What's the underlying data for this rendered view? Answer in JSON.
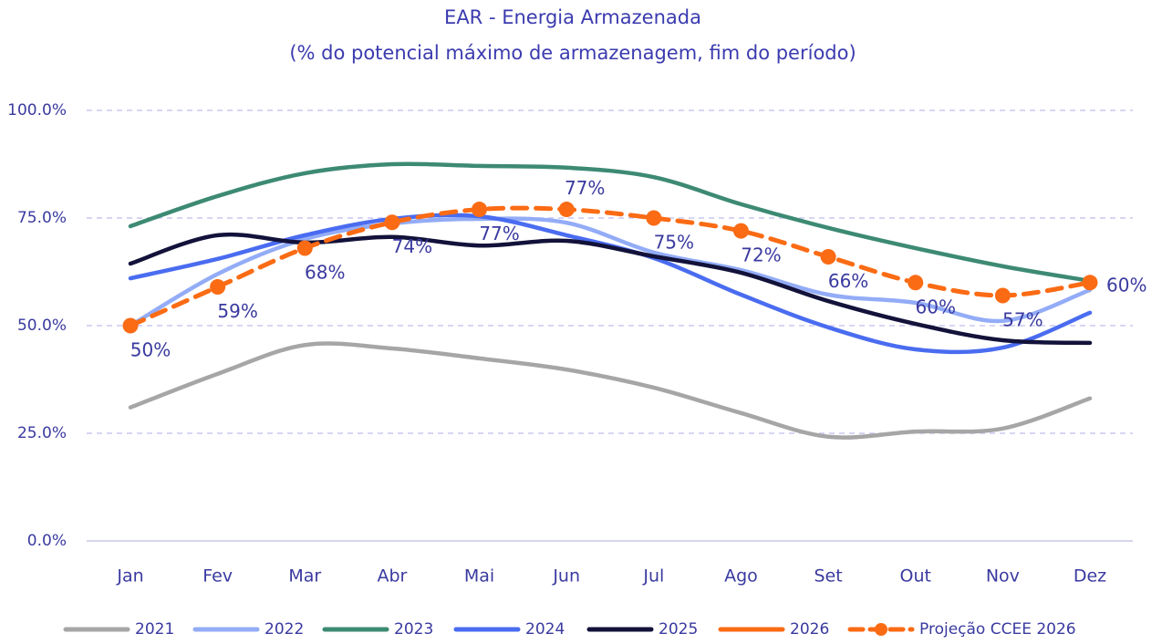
{
  "chart_data": {
    "type": "line",
    "title": "EAR - Energia Armazenada",
    "subtitle": "(% do potencial máximo de armazenagem, fim do período)",
    "categories": [
      "Jan",
      "Fev",
      "Mar",
      "Abr",
      "Mai",
      "Jun",
      "Jul",
      "Ago",
      "Set",
      "Out",
      "Nov",
      "Dez"
    ],
    "ylim": [
      0,
      100
    ],
    "yticks": [
      {
        "value": 0,
        "label": "0.0%"
      },
      {
        "value": 25,
        "label": "25.0%"
      },
      {
        "value": 50,
        "label": "50.0%"
      },
      {
        "value": 75,
        "label": "75.0%"
      },
      {
        "value": 100,
        "label": "100.0%"
      }
    ],
    "grid": true,
    "legend": "bottom",
    "series": [
      {
        "name": "2021",
        "color": "#a6a6a6",
        "values": [
          31,
          38.8,
          45.5,
          44.7,
          42.4,
          39.8,
          35.6,
          29.7,
          24.2,
          25.4,
          26.1,
          33.1
        ]
      },
      {
        "name": "2022",
        "color": "#93acf7",
        "values": [
          50,
          62,
          70.1,
          73.7,
          74.8,
          73.9,
          67,
          62.9,
          57.2,
          55.3,
          51.1,
          58.3
        ]
      },
      {
        "name": "2023",
        "color": "#3d8a73",
        "values": [
          73.1,
          80.1,
          85.4,
          87.5,
          87.1,
          86.7,
          84.5,
          78.2,
          72.7,
          68,
          63.8,
          60.4
        ]
      },
      {
        "name": "2024",
        "color": "#4a6cf0",
        "values": [
          61,
          65.5,
          71,
          74.8,
          75.4,
          71,
          65.7,
          57.2,
          49.6,
          44.5,
          44.9,
          53
        ]
      },
      {
        "name": "2025",
        "color": "#12123a",
        "values": [
          64.4,
          71,
          69.3,
          70.6,
          68.6,
          69.7,
          66.1,
          62.3,
          55.7,
          50.4,
          46.6,
          46
        ]
      },
      {
        "name": "2026",
        "color": "#fa6b14",
        "values": [
          50,
          null,
          null,
          null,
          null,
          null,
          null,
          null,
          null,
          null,
          null,
          null
        ]
      },
      {
        "name": "Projeção CCEE  2026",
        "color": "#fa6b14",
        "dashed": true,
        "markers": true,
        "values": [
          50,
          59,
          68,
          74,
          77,
          77,
          75,
          72,
          66,
          60,
          57,
          60
        ],
        "value_labels": [
          "50%",
          "59%",
          "68%",
          "74%",
          "77%",
          "77%",
          "75%",
          "72%",
          "66%",
          "60%",
          "57%",
          "60%"
        ]
      }
    ]
  }
}
